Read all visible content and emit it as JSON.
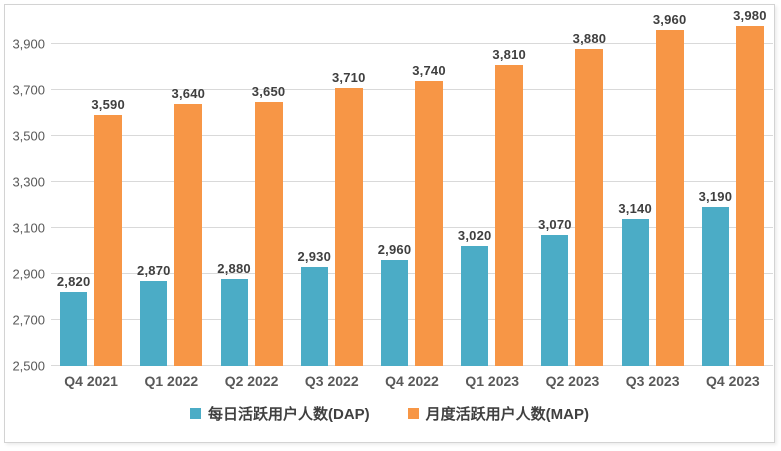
{
  "chart_data": {
    "type": "bar",
    "title": "",
    "xlabel": "",
    "ylabel": "",
    "categories": [
      "Q4 2021",
      "Q1 2022",
      "Q2 2022",
      "Q3 2022",
      "Q4 2022",
      "Q1 2023",
      "Q2 2023",
      "Q3 2023",
      "Q4 2023"
    ],
    "series": [
      {
        "name": "每日活跃用户人数(DAP)",
        "color": "#4BACC6",
        "values": [
          2820,
          2870,
          2880,
          2930,
          2960,
          3020,
          3070,
          3140,
          3190
        ],
        "labels": [
          "2,820",
          "2,870",
          "2,880",
          "2,930",
          "2,960",
          "3,020",
          "3,070",
          "3,140",
          "3,190"
        ]
      },
      {
        "name": "月度活跃用户人数(MAP)",
        "color": "#F79646",
        "values": [
          3590,
          3640,
          3650,
          3710,
          3740,
          3810,
          3880,
          3960,
          3980
        ],
        "labels": [
          "3,590",
          "3,640",
          "3,650",
          "3,710",
          "3,740",
          "3,810",
          "3,880",
          "3,960",
          "3,980"
        ]
      }
    ],
    "ylim": [
      2500,
      4000
    ],
    "yticks": [
      2500,
      2700,
      2900,
      3100,
      3300,
      3500,
      3700,
      3900
    ],
    "ytick_labels": [
      "2,500",
      "2,700",
      "2,900",
      "3,100",
      "3,300",
      "3,500",
      "3,700",
      "3,900"
    ],
    "grid": true,
    "data_labels_shown": true,
    "legend_position": "bottom",
    "colors": {
      "gridline": "#D9D9D9",
      "axis_label": "#595959",
      "data_label": "#3F3F3F",
      "frame_border": "#D3D3D3",
      "background": "#FFFFFF"
    }
  }
}
